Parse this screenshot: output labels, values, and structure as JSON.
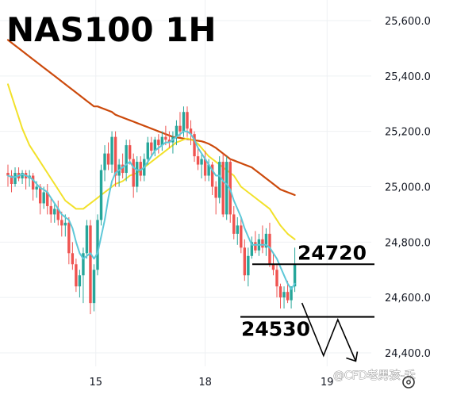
{
  "chart_data": {
    "type": "candlestick",
    "title": "NAS100 1H",
    "y_ticks": [
      "25,600.0",
      "25,400.0",
      "25,200.0",
      "25,000.0",
      "24,800.0",
      "24,600.0",
      "24,400.0"
    ],
    "y_tick_values": [
      25600,
      25400,
      25200,
      25000,
      24800,
      24600,
      24400
    ],
    "ylim": [
      24355,
      25655
    ],
    "x_ticks": [
      "15",
      "18",
      "19"
    ],
    "x_tick_index": [
      24.5,
      55,
      89
    ],
    "grid": true,
    "colors": {
      "up": "#26a69a",
      "down": "#ef5350",
      "ma_fast": "#5ec8d8",
      "ma_mid": "#f2e12a",
      "ma_slow": "#cc4a0c",
      "level_line": "#000000"
    },
    "candles": [
      [
        25050,
        25080,
        25000,
        25040
      ],
      [
        25040,
        25060,
        24980,
        25010
      ],
      [
        25010,
        25070,
        25000,
        25050
      ],
      [
        25050,
        25070,
        25020,
        25030
      ],
      [
        25030,
        25060,
        25010,
        25050
      ],
      [
        25050,
        25060,
        24990,
        25030
      ],
      [
        25030,
        25060,
        25000,
        25040
      ],
      [
        25040,
        25050,
        24950,
        24990
      ],
      [
        24990,
        25020,
        24960,
        25000
      ],
      [
        25000,
        25010,
        24900,
        24940
      ],
      [
        24940,
        25000,
        24920,
        24980
      ],
      [
        24980,
        25010,
        24900,
        24930
      ],
      [
        24930,
        24960,
        24870,
        24900
      ],
      [
        24900,
        24940,
        24870,
        24920
      ],
      [
        24920,
        24950,
        24860,
        24880
      ],
      [
        24880,
        24910,
        24820,
        24860
      ],
      [
        24860,
        24900,
        24820,
        24870
      ],
      [
        24870,
        24890,
        24720,
        24760
      ],
      [
        24760,
        24800,
        24700,
        24720
      ],
      [
        24720,
        24740,
        24620,
        24640
      ],
      [
        24640,
        24700,
        24600,
        24680
      ],
      [
        24680,
        24780,
        24580,
        24760
      ],
      [
        24760,
        24880,
        24740,
        24860
      ],
      [
        24860,
        24880,
        24540,
        24580
      ],
      [
        24580,
        24720,
        24550,
        24700
      ],
      [
        24700,
        24900,
        24680,
        24880
      ],
      [
        24880,
        25080,
        24860,
        25060
      ],
      [
        25060,
        25150,
        25020,
        25120
      ],
      [
        25120,
        25160,
        25060,
        25080
      ],
      [
        25080,
        25200,
        25050,
        25180
      ],
      [
        25180,
        25200,
        25000,
        25040
      ],
      [
        25040,
        25100,
        25000,
        25080
      ],
      [
        25080,
        25120,
        25030,
        25050
      ],
      [
        25050,
        25170,
        25020,
        25150
      ],
      [
        25150,
        25170,
        25080,
        25100
      ],
      [
        25100,
        25120,
        24960,
        25000
      ],
      [
        25000,
        25110,
        24980,
        25090
      ],
      [
        25090,
        25110,
        25020,
        25040
      ],
      [
        25040,
        25120,
        25020,
        25100
      ],
      [
        25100,
        25180,
        25080,
        25160
      ],
      [
        25160,
        25180,
        25110,
        25130
      ],
      [
        25130,
        25180,
        25110,
        25170
      ],
      [
        25170,
        25190,
        25120,
        25150
      ],
      [
        25150,
        25200,
        25130,
        25180
      ],
      [
        25180,
        25220,
        25150,
        25170
      ],
      [
        25170,
        25200,
        25140,
        25160
      ],
      [
        25160,
        25200,
        25120,
        25180
      ],
      [
        25180,
        25240,
        25150,
        25220
      ],
      [
        25220,
        25270,
        25180,
        25200
      ],
      [
        25200,
        25290,
        25180,
        25270
      ],
      [
        25270,
        25290,
        25180,
        25210
      ],
      [
        25210,
        25240,
        25150,
        25190
      ],
      [
        25190,
        25200,
        25090,
        25110
      ],
      [
        25110,
        25140,
        25060,
        25080
      ],
      [
        25080,
        25120,
        25030,
        25100
      ],
      [
        25100,
        25130,
        25020,
        25040
      ],
      [
        25040,
        25100,
        25020,
        25080
      ],
      [
        25080,
        25090,
        24970,
        25000
      ],
      [
        25000,
        25020,
        24900,
        24960
      ],
      [
        24960,
        25110,
        24940,
        25090
      ],
      [
        25090,
        25120,
        24890,
        24900
      ],
      [
        24900,
        25110,
        24880,
        25090
      ],
      [
        25090,
        25100,
        24870,
        24900
      ],
      [
        24900,
        24930,
        24810,
        24830
      ],
      [
        24830,
        24890,
        24790,
        24860
      ],
      [
        24860,
        24890,
        24760,
        24780
      ],
      [
        24780,
        24810,
        24660,
        24680
      ],
      [
        24680,
        24780,
        24640,
        24750
      ],
      [
        24750,
        24820,
        24740,
        24800
      ],
      [
        24800,
        24840,
        24760,
        24770
      ],
      [
        24770,
        24830,
        24750,
        24810
      ],
      [
        24810,
        24860,
        24760,
        24780
      ],
      [
        24780,
        24850,
        24750,
        24830
      ],
      [
        24830,
        24870,
        24710,
        24720
      ],
      [
        24720,
        24760,
        24680,
        24700
      ],
      [
        24700,
        24720,
        24600,
        24640
      ],
      [
        24640,
        24650,
        24560,
        24600
      ],
      [
        24600,
        24640,
        24560,
        24620
      ],
      [
        24620,
        24660,
        24580,
        24590
      ],
      [
        24590,
        24630,
        24560,
        24640
      ],
      [
        24640,
        24780,
        24620,
        24720
      ]
    ],
    "moving_averages": {
      "fast": {
        "start_index": 0,
        "values": [
          25040,
          25035,
          25035,
          25040,
          25045,
          25040,
          25035,
          25025,
          25010,
          24995,
          24990,
          24980,
          24960,
          24940,
          24920,
          24900,
          24890,
          24880,
          24850,
          24800,
          24760,
          24740,
          24750,
          24760,
          24740,
          24760,
          24820,
          24880,
          24960,
          25020,
          25050,
          25060,
          25070,
          25080,
          25090,
          25070,
          25060,
          25060,
          25070,
          25090,
          25110,
          25130,
          25140,
          25150,
          25160,
          25160,
          25170,
          25180,
          25190,
          25200,
          25200,
          25190,
          25170,
          25140,
          25120,
          25100,
          25080,
          25060,
          25040,
          25040,
          25020,
          25010,
          24990,
          24950,
          24920,
          24890,
          24850,
          24820,
          24790,
          24790,
          24790,
          24790,
          24790,
          24780,
          24760,
          24740,
          24710,
          24680,
          24650,
          24630,
          24650
        ]
      },
      "mid": {
        "start_index": 0,
        "values": [
          25370,
          25330,
          25290,
          25250,
          25210,
          25180,
          25150,
          25130,
          25110,
          25090,
          25070,
          25050,
          25030,
          25010,
          24990,
          24970,
          24950,
          24940,
          24930,
          24920,
          24920,
          24920,
          24930,
          24940,
          24950,
          24960,
          24970,
          24980,
          24990,
          25000,
          25010,
          25015,
          25020,
          25030,
          25040,
          25045,
          25050,
          25060,
          25070,
          25080,
          25090,
          25100,
          25110,
          25120,
          25130,
          25140,
          25150,
          25160,
          25165,
          25170,
          25175,
          25170,
          25165,
          25155,
          25140,
          25125,
          25110,
          25100,
          25090,
          25080,
          25070,
          25060,
          25050,
          25040,
          25020,
          25000,
          24990,
          24980,
          24970,
          24960,
          24950,
          24940,
          24930,
          24920,
          24900,
          24880,
          24860,
          24845,
          24830,
          24820,
          24810
        ]
      },
      "slow": {
        "start_index": 0,
        "values": [
          25530,
          25520,
          25510,
          25500,
          25490,
          25480,
          25470,
          25460,
          25450,
          25440,
          25430,
          25420,
          25410,
          25400,
          25390,
          25380,
          25370,
          25360,
          25350,
          25340,
          25330,
          25320,
          25310,
          25300,
          25290,
          25290,
          25285,
          25280,
          25275,
          25270,
          25260,
          25255,
          25250,
          25245,
          25240,
          25235,
          25230,
          25225,
          25220,
          25215,
          25210,
          25205,
          25200,
          25195,
          25190,
          25185,
          25180,
          25178,
          25176,
          25174,
          25172,
          25170,
          25168,
          25166,
          25164,
          25160,
          25155,
          25148,
          25140,
          25130,
          25120,
          25110,
          25100,
          25095,
          25090,
          25085,
          25080,
          25075,
          25070,
          25060,
          25050,
          25040,
          25030,
          25020,
          25010,
          25000,
          24990,
          24985,
          24980,
          24975,
          24970
        ]
      }
    },
    "annotations": [
      {
        "text": "24720",
        "value": 24720
      },
      {
        "text": "24530",
        "value": 24530
      }
    ],
    "projection_path": [
      [
        82,
        24580
      ],
      [
        88,
        24390
      ],
      [
        92,
        24520
      ],
      [
        97,
        24370
      ]
    ]
  },
  "watermark": "@CFD老男孩-禾"
}
